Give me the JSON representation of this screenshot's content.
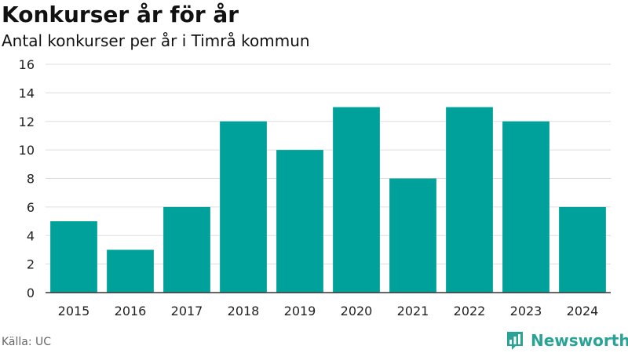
{
  "header": {
    "title": "Konkurser år för år",
    "subtitle": "Antal konkurser per år i Timrå kommun"
  },
  "footer": {
    "source": "Källa: UC",
    "brand": "Newsworthy",
    "brand_color": "#2aa397"
  },
  "chart_data": {
    "type": "bar",
    "title": "Konkurser år för år",
    "subtitle": "Antal konkurser per år i Timrå kommun",
    "xlabel": "",
    "ylabel": "",
    "categories": [
      "2015",
      "2016",
      "2017",
      "2018",
      "2019",
      "2020",
      "2021",
      "2022",
      "2023",
      "2024"
    ],
    "values": [
      5,
      3,
      6,
      12,
      10,
      13,
      8,
      13,
      12,
      6
    ],
    "ylim": [
      0,
      16
    ],
    "yticks": [
      0,
      2,
      4,
      6,
      8,
      10,
      12,
      14,
      16
    ],
    "grid": true,
    "bar_color": "#00a19a",
    "gridline_color": "#dddddd",
    "axis_color": "#333333"
  }
}
